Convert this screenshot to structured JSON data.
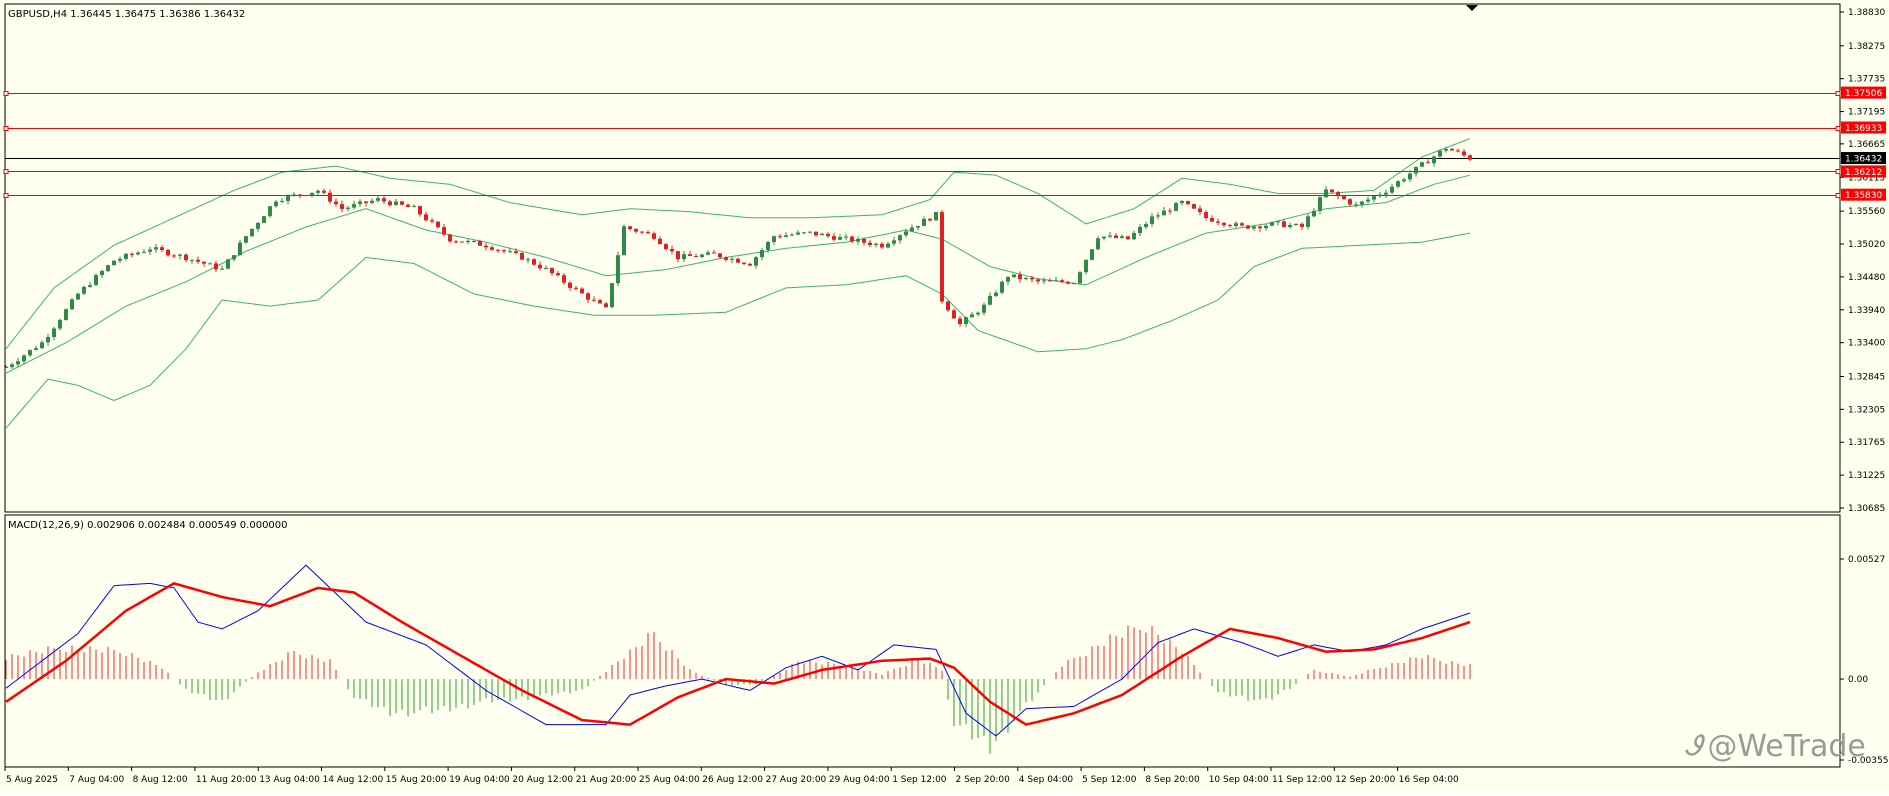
{
  "header": {
    "symbol_line": "GBPUSD,H4  1.36445 1.36475 1.36386 1.36432"
  },
  "indicator": {
    "label": "MACD(12,26,9) 0.002906 0.002484 0.000549 0.000000"
  },
  "watermark": {
    "logo": "Ꮽ",
    "text": "@WeTrade"
  },
  "colors": {
    "background": "#fffff0",
    "bull": "#2e8b46",
    "bear": "#e02020",
    "bands": "#3cb371",
    "level_lines": "#ff0000",
    "current_price_line": "#000000",
    "macd_line": "#0000ff",
    "signal_line": "#ff0000",
    "hist_positive": "#ff2020",
    "hist_negative": "#22a022"
  },
  "chart_data": [
    {
      "type": "candlestick",
      "symbol": "GBPUSD",
      "timeframe": "H4",
      "ylim": [
        1.30685,
        1.3883
      ],
      "price_ticks": [
        "1.38830",
        "1.38275",
        "1.37735",
        "1.37195",
        "1.36665",
        "1.36115",
        "1.35560",
        "1.35020",
        "1.34480",
        "1.33940",
        "1.33400",
        "1.32845",
        "1.32305",
        "1.31765",
        "1.31225",
        "1.30685"
      ],
      "level_labels": [
        {
          "label": "1.37506",
          "price": 1.37506,
          "color": "#ff0000"
        },
        {
          "label": "1.36933",
          "price": 1.36933,
          "color": "#ff0000"
        },
        {
          "label": "1.36432",
          "price": 1.36432,
          "color": "#000000"
        },
        {
          "label": "1.36212",
          "price": 1.36212,
          "color": "#ff0000"
        },
        {
          "label": "1.35830",
          "price": 1.3583,
          "color": "#ff0000"
        }
      ],
      "time_labels": [
        "5 Aug 2025",
        "7 Aug 04:00",
        "8 Aug 12:00",
        "11 Aug 20:00",
        "13 Aug 04:00",
        "14 Aug 12:00",
        "15 Aug 20:00",
        "19 Aug 04:00",
        "20 Aug 12:00",
        "21 Aug 20:00",
        "25 Aug 04:00",
        "26 Aug 12:00",
        "27 Aug 20:00",
        "29 Aug 04:00",
        "1 Sep 12:00",
        "2 Sep 20:00",
        "4 Sep 04:00",
        "5 Sep 12:00",
        "8 Sep 20:00",
        "10 Sep 04:00",
        "11 Sep 12:00",
        "12 Sep 20:00",
        "16 Sep 04:00"
      ],
      "close_path": [
        [
          0,
          1.33
        ],
        [
          6,
          1.334
        ],
        [
          12,
          1.342
        ],
        [
          18,
          1.3475
        ],
        [
          24,
          1.3495
        ],
        [
          30,
          1.348
        ],
        [
          36,
          1.346
        ],
        [
          40,
          1.3515
        ],
        [
          45,
          1.3575
        ],
        [
          52,
          1.359
        ],
        [
          56,
          1.356
        ],
        [
          62,
          1.3575
        ],
        [
          68,
          1.356
        ],
        [
          74,
          1.351
        ],
        [
          80,
          1.35
        ],
        [
          86,
          1.348
        ],
        [
          90,
          1.346
        ],
        [
          96,
          1.342
        ],
        [
          100,
          1.3395
        ],
        [
          103,
          1.353
        ],
        [
          108,
          1.3515
        ],
        [
          112,
          1.348
        ],
        [
          118,
          1.3485
        ],
        [
          124,
          1.347
        ],
        [
          128,
          1.3515
        ],
        [
          134,
          1.352
        ],
        [
          140,
          1.351
        ],
        [
          146,
          1.35
        ],
        [
          150,
          1.3525
        ],
        [
          155,
          1.355
        ],
        [
          156,
          1.341
        ],
        [
          159,
          1.337
        ],
        [
          163,
          1.34
        ],
        [
          167,
          1.345
        ],
        [
          172,
          1.344
        ],
        [
          178,
          1.344
        ],
        [
          182,
          1.3515
        ],
        [
          187,
          1.351
        ],
        [
          191,
          1.3545
        ],
        [
          196,
          1.357
        ],
        [
          200,
          1.3545
        ],
        [
          206,
          1.353
        ],
        [
          212,
          1.3535
        ],
        [
          216,
          1.353
        ],
        [
          220,
          1.359
        ],
        [
          225,
          1.3565
        ],
        [
          230,
          1.359
        ],
        [
          235,
          1.3625
        ],
        [
          240,
          1.366
        ],
        [
          244,
          1.3643
        ]
      ],
      "bands_upper": [
        [
          0,
          1.333
        ],
        [
          8,
          1.343
        ],
        [
          18,
          1.35
        ],
        [
          28,
          1.3545
        ],
        [
          38,
          1.359
        ],
        [
          46,
          1.362
        ],
        [
          55,
          1.363
        ],
        [
          64,
          1.361
        ],
        [
          74,
          1.36
        ],
        [
          84,
          1.357
        ],
        [
          96,
          1.355
        ],
        [
          104,
          1.356
        ],
        [
          114,
          1.3555
        ],
        [
          124,
          1.3545
        ],
        [
          134,
          1.3545
        ],
        [
          146,
          1.355
        ],
        [
          154,
          1.3575
        ],
        [
          158,
          1.362
        ],
        [
          165,
          1.3615
        ],
        [
          172,
          1.3585
        ],
        [
          180,
          1.3535
        ],
        [
          188,
          1.356
        ],
        [
          196,
          1.361
        ],
        [
          204,
          1.36
        ],
        [
          212,
          1.3585
        ],
        [
          220,
          1.3585
        ],
        [
          228,
          1.359
        ],
        [
          236,
          1.3645
        ],
        [
          244,
          1.3675
        ]
      ],
      "bands_middle": [
        [
          0,
          1.329
        ],
        [
          10,
          1.334
        ],
        [
          20,
          1.34
        ],
        [
          30,
          1.344
        ],
        [
          40,
          1.349
        ],
        [
          50,
          1.353
        ],
        [
          60,
          1.356
        ],
        [
          70,
          1.3525
        ],
        [
          80,
          1.3505
        ],
        [
          90,
          1.348
        ],
        [
          100,
          1.345
        ],
        [
          110,
          1.346
        ],
        [
          120,
          1.348
        ],
        [
          130,
          1.3495
        ],
        [
          140,
          1.3505
        ],
        [
          150,
          1.3525
        ],
        [
          156,
          1.351
        ],
        [
          164,
          1.3465
        ],
        [
          172,
          1.3445
        ],
        [
          180,
          1.3435
        ],
        [
          190,
          1.348
        ],
        [
          200,
          1.352
        ],
        [
          210,
          1.3535
        ],
        [
          220,
          1.356
        ],
        [
          230,
          1.357
        ],
        [
          238,
          1.36
        ],
        [
          244,
          1.3615
        ]
      ],
      "bands_lower": [
        [
          0,
          1.32
        ],
        [
          7,
          1.328
        ],
        [
          12,
          1.327
        ],
        [
          18,
          1.3245
        ],
        [
          24,
          1.327
        ],
        [
          30,
          1.333
        ],
        [
          36,
          1.341
        ],
        [
          44,
          1.34
        ],
        [
          52,
          1.341
        ],
        [
          60,
          1.348
        ],
        [
          68,
          1.347
        ],
        [
          78,
          1.342
        ],
        [
          88,
          1.34
        ],
        [
          98,
          1.3385
        ],
        [
          108,
          1.3385
        ],
        [
          120,
          1.339
        ],
        [
          130,
          1.343
        ],
        [
          140,
          1.3435
        ],
        [
          150,
          1.345
        ],
        [
          156,
          1.342
        ],
        [
          162,
          1.336
        ],
        [
          172,
          1.3325
        ],
        [
          180,
          1.333
        ],
        [
          186,
          1.3345
        ],
        [
          194,
          1.3375
        ],
        [
          202,
          1.341
        ],
        [
          208,
          1.3465
        ],
        [
          216,
          1.3495
        ],
        [
          226,
          1.35
        ],
        [
          236,
          1.3505
        ],
        [
          244,
          1.352
        ]
      ]
    },
    {
      "type": "line",
      "name": "MACD(12,26,9)",
      "ylim": [
        -0.003553,
        0.00527
      ],
      "y_ticks": [
        "0.00527",
        "0.00",
        "-0.003553"
      ],
      "macd_line": [
        [
          0,
          -0.0004
        ],
        [
          6,
          0.0008
        ],
        [
          12,
          0.002
        ],
        [
          18,
          0.0041
        ],
        [
          24,
          0.0042
        ],
        [
          28,
          0.004
        ],
        [
          32,
          0.0025
        ],
        [
          36,
          0.0022
        ],
        [
          42,
          0.003
        ],
        [
          50,
          0.005
        ],
        [
          54,
          0.004
        ],
        [
          60,
          0.0025
        ],
        [
          70,
          0.0015
        ],
        [
          80,
          -0.0005
        ],
        [
          90,
          -0.002
        ],
        [
          100,
          -0.002
        ],
        [
          104,
          -0.0007
        ],
        [
          110,
          -0.0003
        ],
        [
          116,
          0.0
        ],
        [
          124,
          -0.0005
        ],
        [
          130,
          0.0005
        ],
        [
          136,
          0.001
        ],
        [
          142,
          0.0004
        ],
        [
          148,
          0.0015
        ],
        [
          155,
          0.0013
        ],
        [
          160,
          -0.0015
        ],
        [
          165,
          -0.0025
        ],
        [
          170,
          -0.0013
        ],
        [
          178,
          -0.0012
        ],
        [
          186,
          0.0
        ],
        [
          192,
          0.0016
        ],
        [
          198,
          0.0022
        ],
        [
          206,
          0.0016
        ],
        [
          212,
          0.001
        ],
        [
          218,
          0.0015
        ],
        [
          224,
          0.0012
        ],
        [
          230,
          0.0015
        ],
        [
          236,
          0.0022
        ],
        [
          244,
          0.0029
        ]
      ],
      "signal_line": [
        [
          0,
          -0.001
        ],
        [
          10,
          0.0008
        ],
        [
          20,
          0.003
        ],
        [
          28,
          0.0042
        ],
        [
          36,
          0.0036
        ],
        [
          44,
          0.0032
        ],
        [
          52,
          0.004
        ],
        [
          58,
          0.0038
        ],
        [
          66,
          0.0025
        ],
        [
          76,
          0.001
        ],
        [
          86,
          -0.0005
        ],
        [
          96,
          -0.0018
        ],
        [
          104,
          -0.002
        ],
        [
          112,
          -0.0008
        ],
        [
          120,
          0.0
        ],
        [
          128,
          -0.0002
        ],
        [
          136,
          0.0004
        ],
        [
          146,
          0.0008
        ],
        [
          154,
          0.0009
        ],
        [
          158,
          0.0005
        ],
        [
          164,
          -0.001
        ],
        [
          170,
          -0.002
        ],
        [
          178,
          -0.0015
        ],
        [
          186,
          -0.0007
        ],
        [
          196,
          0.001
        ],
        [
          204,
          0.0022
        ],
        [
          212,
          0.0018
        ],
        [
          220,
          0.0012
        ],
        [
          228,
          0.0013
        ],
        [
          236,
          0.0018
        ],
        [
          244,
          0.0025
        ]
      ],
      "histogram": [
        [
          0,
          0.001
        ],
        [
          10,
          0.0014
        ],
        [
          20,
          0.0012
        ],
        [
          26,
          0.0005
        ],
        [
          30,
          -0.0005
        ],
        [
          36,
          -0.001
        ],
        [
          42,
          0.0003
        ],
        [
          48,
          0.0012
        ],
        [
          54,
          0.0008
        ],
        [
          58,
          -0.0008
        ],
        [
          64,
          -0.0015
        ],
        [
          72,
          -0.0014
        ],
        [
          80,
          -0.001
        ],
        [
          88,
          -0.0008
        ],
        [
          96,
          -0.0005
        ],
        [
          102,
          0.0008
        ],
        [
          108,
          0.002
        ],
        [
          114,
          0.0004
        ],
        [
          120,
          -0.0003
        ],
        [
          126,
          -0.0002
        ],
        [
          132,
          0.0008
        ],
        [
          140,
          0.0006
        ],
        [
          146,
          0.0002
        ],
        [
          152,
          0.0009
        ],
        [
          156,
          0.0004
        ],
        [
          158,
          -0.002
        ],
        [
          164,
          -0.003
        ],
        [
          170,
          -0.0012
        ],
        [
          176,
          0.0006
        ],
        [
          184,
          0.0018
        ],
        [
          190,
          0.0024
        ],
        [
          196,
          0.0012
        ],
        [
          202,
          -0.0006
        ],
        [
          210,
          -0.001
        ],
        [
          214,
          -0.0004
        ],
        [
          218,
          0.0004
        ],
        [
          224,
          0.0001
        ],
        [
          230,
          0.0006
        ],
        [
          236,
          0.001
        ],
        [
          244,
          0.0006
        ]
      ]
    }
  ]
}
